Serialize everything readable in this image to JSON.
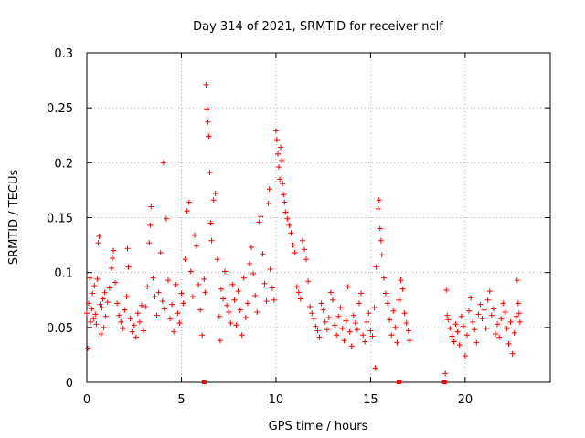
{
  "chart_data": {
    "type": "scatter",
    "title": "Day 314 of 2021, SRMTID for receiver nclf",
    "xlabel": "GPS time / hours",
    "ylabel": "SRMTID / TECUs",
    "xlim": [
      0,
      24.5
    ],
    "ylim": [
      0,
      0.3
    ],
    "xticks": [
      0,
      5,
      10,
      15,
      20
    ],
    "xtick_labels": [
      "0",
      "5",
      "10",
      "15",
      "20"
    ],
    "yticks": [
      0,
      0.05,
      0.1,
      0.15,
      0.2,
      0.25,
      0.3
    ],
    "ytick_labels": [
      "0",
      "0.05",
      "0.1",
      "0.15",
      "0.2",
      "0.25",
      "0.3"
    ],
    "grid": true,
    "legend": "none",
    "marker": "+",
    "color": "#ff0000",
    "zero_markers_x": [
      6.2,
      16.5,
      18.9
    ],
    "series": [
      {
        "values": [
          [
            0.0,
            0.063
          ],
          [
            0.05,
            0.031
          ],
          [
            0.1,
            0.072
          ],
          [
            0.15,
            0.095
          ],
          [
            0.2,
            0.055
          ],
          [
            0.25,
            0.067
          ],
          [
            0.3,
            0.081
          ],
          [
            0.35,
            0.058
          ],
          [
            0.4,
            0.088
          ],
          [
            0.45,
            0.062
          ],
          [
            0.5,
            0.053
          ],
          [
            0.55,
            0.094
          ],
          [
            0.6,
            0.127
          ],
          [
            0.65,
            0.133
          ],
          [
            0.7,
            0.071
          ],
          [
            0.75,
            0.044
          ],
          [
            0.8,
            0.068
          ],
          [
            0.85,
            0.076
          ],
          [
            0.9,
            0.05
          ],
          [
            0.95,
            0.082
          ],
          [
            1.0,
            0.06
          ],
          [
            1.1,
            0.073
          ],
          [
            1.2,
            0.086
          ],
          [
            1.3,
            0.104
          ],
          [
            1.35,
            0.113
          ],
          [
            1.4,
            0.12
          ],
          [
            1.5,
            0.091
          ],
          [
            1.6,
            0.072
          ],
          [
            1.7,
            0.061
          ],
          [
            1.8,
            0.055
          ],
          [
            1.9,
            0.049
          ],
          [
            2.0,
            0.066
          ],
          [
            2.1,
            0.078
          ],
          [
            2.15,
            0.122
          ],
          [
            2.2,
            0.105
          ],
          [
            2.3,
            0.058
          ],
          [
            2.4,
            0.046
          ],
          [
            2.5,
            0.052
          ],
          [
            2.6,
            0.041
          ],
          [
            2.7,
            0.063
          ],
          [
            2.8,
            0.055
          ],
          [
            2.9,
            0.07
          ],
          [
            3.0,
            0.047
          ],
          [
            3.1,
            0.069
          ],
          [
            3.2,
            0.087
          ],
          [
            3.3,
            0.127
          ],
          [
            3.35,
            0.143
          ],
          [
            3.4,
            0.16
          ],
          [
            3.5,
            0.095
          ],
          [
            3.6,
            0.078
          ],
          [
            3.7,
            0.061
          ],
          [
            3.8,
            0.082
          ],
          [
            3.9,
            0.118
          ],
          [
            4.0,
            0.074
          ],
          [
            4.05,
            0.2
          ],
          [
            4.1,
            0.067
          ],
          [
            4.2,
            0.149
          ],
          [
            4.3,
            0.093
          ],
          [
            4.4,
            0.058
          ],
          [
            4.5,
            0.071
          ],
          [
            4.6,
            0.046
          ],
          [
            4.7,
            0.089
          ],
          [
            4.8,
            0.063
          ],
          [
            4.9,
            0.054
          ],
          [
            5.0,
            0.081
          ],
          [
            5.1,
            0.072
          ],
          [
            5.2,
            0.112
          ],
          [
            5.3,
            0.156
          ],
          [
            5.4,
            0.164
          ],
          [
            5.5,
            0.101
          ],
          [
            5.6,
            0.078
          ],
          [
            5.7,
            0.134
          ],
          [
            5.8,
            0.124
          ],
          [
            5.9,
            0.089
          ],
          [
            6.0,
            0.066
          ],
          [
            6.1,
            0.043
          ],
          [
            6.2,
            0.094
          ],
          [
            6.25,
            0.082
          ],
          [
            6.3,
            0.271
          ],
          [
            6.35,
            0.249
          ],
          [
            6.4,
            0.237
          ],
          [
            6.45,
            0.224
          ],
          [
            6.5,
            0.191
          ],
          [
            6.55,
            0.145
          ],
          [
            6.6,
            0.129
          ],
          [
            6.7,
            0.166
          ],
          [
            6.8,
            0.172
          ],
          [
            6.9,
            0.112
          ],
          [
            7.0,
            0.06
          ],
          [
            7.05,
            0.038
          ],
          [
            7.1,
            0.085
          ],
          [
            7.2,
            0.076
          ],
          [
            7.3,
            0.101
          ],
          [
            7.4,
            0.07
          ],
          [
            7.5,
            0.064
          ],
          [
            7.6,
            0.054
          ],
          [
            7.7,
            0.089
          ],
          [
            7.8,
            0.075
          ],
          [
            7.9,
            0.052
          ],
          [
            8.0,
            0.083
          ],
          [
            8.1,
            0.066
          ],
          [
            8.2,
            0.043
          ],
          [
            8.3,
            0.095
          ],
          [
            8.4,
            0.059
          ],
          [
            8.5,
            0.072
          ],
          [
            8.6,
            0.108
          ],
          [
            8.7,
            0.123
          ],
          [
            8.8,
            0.099
          ],
          [
            8.9,
            0.079
          ],
          [
            9.0,
            0.064
          ],
          [
            9.1,
            0.146
          ],
          [
            9.2,
            0.151
          ],
          [
            9.3,
            0.117
          ],
          [
            9.4,
            0.09
          ],
          [
            9.5,
            0.074
          ],
          [
            9.6,
            0.163
          ],
          [
            9.65,
            0.176
          ],
          [
            9.7,
            0.103
          ],
          [
            9.8,
            0.086
          ],
          [
            9.9,
            0.075
          ],
          [
            10.0,
            0.229
          ],
          [
            10.05,
            0.221
          ],
          [
            10.1,
            0.208
          ],
          [
            10.15,
            0.196
          ],
          [
            10.2,
            0.185
          ],
          [
            10.25,
            0.214
          ],
          [
            10.3,
            0.202
          ],
          [
            10.35,
            0.181
          ],
          [
            10.4,
            0.171
          ],
          [
            10.45,
            0.164
          ],
          [
            10.5,
            0.155
          ],
          [
            10.6,
            0.149
          ],
          [
            10.7,
            0.143
          ],
          [
            10.8,
            0.136
          ],
          [
            10.9,
            0.125
          ],
          [
            11.0,
            0.118
          ],
          [
            11.1,
            0.087
          ],
          [
            11.2,
            0.082
          ],
          [
            11.3,
            0.076
          ],
          [
            11.4,
            0.129
          ],
          [
            11.5,
            0.121
          ],
          [
            11.6,
            0.112
          ],
          [
            11.7,
            0.092
          ],
          [
            11.8,
            0.069
          ],
          [
            11.9,
            0.063
          ],
          [
            12.0,
            0.058
          ],
          [
            12.1,
            0.051
          ],
          [
            12.2,
            0.047
          ],
          [
            12.3,
            0.041
          ],
          [
            12.4,
            0.072
          ],
          [
            12.5,
            0.066
          ],
          [
            12.6,
            0.055
          ],
          [
            12.7,
            0.048
          ],
          [
            12.8,
            0.059
          ],
          [
            12.9,
            0.082
          ],
          [
            13.0,
            0.075
          ],
          [
            13.1,
            0.052
          ],
          [
            13.2,
            0.043
          ],
          [
            13.3,
            0.06
          ],
          [
            13.4,
            0.068
          ],
          [
            13.5,
            0.049
          ],
          [
            13.6,
            0.038
          ],
          [
            13.7,
            0.056
          ],
          [
            13.8,
            0.087
          ],
          [
            13.9,
            0.046
          ],
          [
            14.0,
            0.033
          ],
          [
            14.1,
            0.061
          ],
          [
            14.2,
            0.054
          ],
          [
            14.3,
            0.048
          ],
          [
            14.4,
            0.072
          ],
          [
            14.5,
            0.081
          ],
          [
            14.6,
            0.043
          ],
          [
            14.7,
            0.037
          ],
          [
            14.8,
            0.055
          ],
          [
            14.9,
            0.063
          ],
          [
            15.0,
            0.047
          ],
          [
            15.1,
            0.042
          ],
          [
            15.2,
            0.068
          ],
          [
            15.25,
            0.013
          ],
          [
            15.3,
            0.105
          ],
          [
            15.4,
            0.158
          ],
          [
            15.45,
            0.166
          ],
          [
            15.5,
            0.14
          ],
          [
            15.55,
            0.129
          ],
          [
            15.6,
            0.116
          ],
          [
            15.7,
            0.095
          ],
          [
            15.8,
            0.081
          ],
          [
            15.9,
            0.072
          ],
          [
            16.0,
            0.057
          ],
          [
            16.1,
            0.043
          ],
          [
            16.2,
            0.065
          ],
          [
            16.3,
            0.05
          ],
          [
            16.4,
            0.036
          ],
          [
            16.5,
            0.075
          ],
          [
            16.6,
            0.093
          ],
          [
            16.7,
            0.085
          ],
          [
            16.8,
            0.063
          ],
          [
            16.9,
            0.054
          ],
          [
            17.0,
            0.047
          ],
          [
            17.05,
            0.038
          ],
          [
            18.95,
            0.008
          ],
          [
            19.0,
            0.084
          ],
          [
            19.05,
            0.061
          ],
          [
            19.1,
            0.057
          ],
          [
            19.2,
            0.049
          ],
          [
            19.3,
            0.042
          ],
          [
            19.4,
            0.037
          ],
          [
            19.5,
            0.053
          ],
          [
            19.6,
            0.046
          ],
          [
            19.7,
            0.034
          ],
          [
            19.8,
            0.06
          ],
          [
            19.9,
            0.051
          ],
          [
            20.0,
            0.024
          ],
          [
            20.1,
            0.043
          ],
          [
            20.2,
            0.065
          ],
          [
            20.3,
            0.077
          ],
          [
            20.4,
            0.055
          ],
          [
            20.5,
            0.048
          ],
          [
            20.6,
            0.036
          ],
          [
            20.7,
            0.062
          ],
          [
            20.8,
            0.071
          ],
          [
            20.9,
            0.058
          ],
          [
            21.0,
            0.066
          ],
          [
            21.1,
            0.049
          ],
          [
            21.2,
            0.075
          ],
          [
            21.3,
            0.083
          ],
          [
            21.4,
            0.061
          ],
          [
            21.5,
            0.067
          ],
          [
            21.6,
            0.044
          ],
          [
            21.7,
            0.053
          ],
          [
            21.8,
            0.041
          ],
          [
            21.9,
            0.058
          ],
          [
            22.0,
            0.072
          ],
          [
            22.1,
            0.064
          ],
          [
            22.2,
            0.049
          ],
          [
            22.3,
            0.035
          ],
          [
            22.4,
            0.055
          ],
          [
            22.5,
            0.026
          ],
          [
            22.6,
            0.045
          ],
          [
            22.7,
            0.06
          ],
          [
            22.75,
            0.093
          ],
          [
            22.8,
            0.072
          ],
          [
            22.85,
            0.063
          ],
          [
            22.9,
            0.055
          ]
        ]
      }
    ]
  }
}
